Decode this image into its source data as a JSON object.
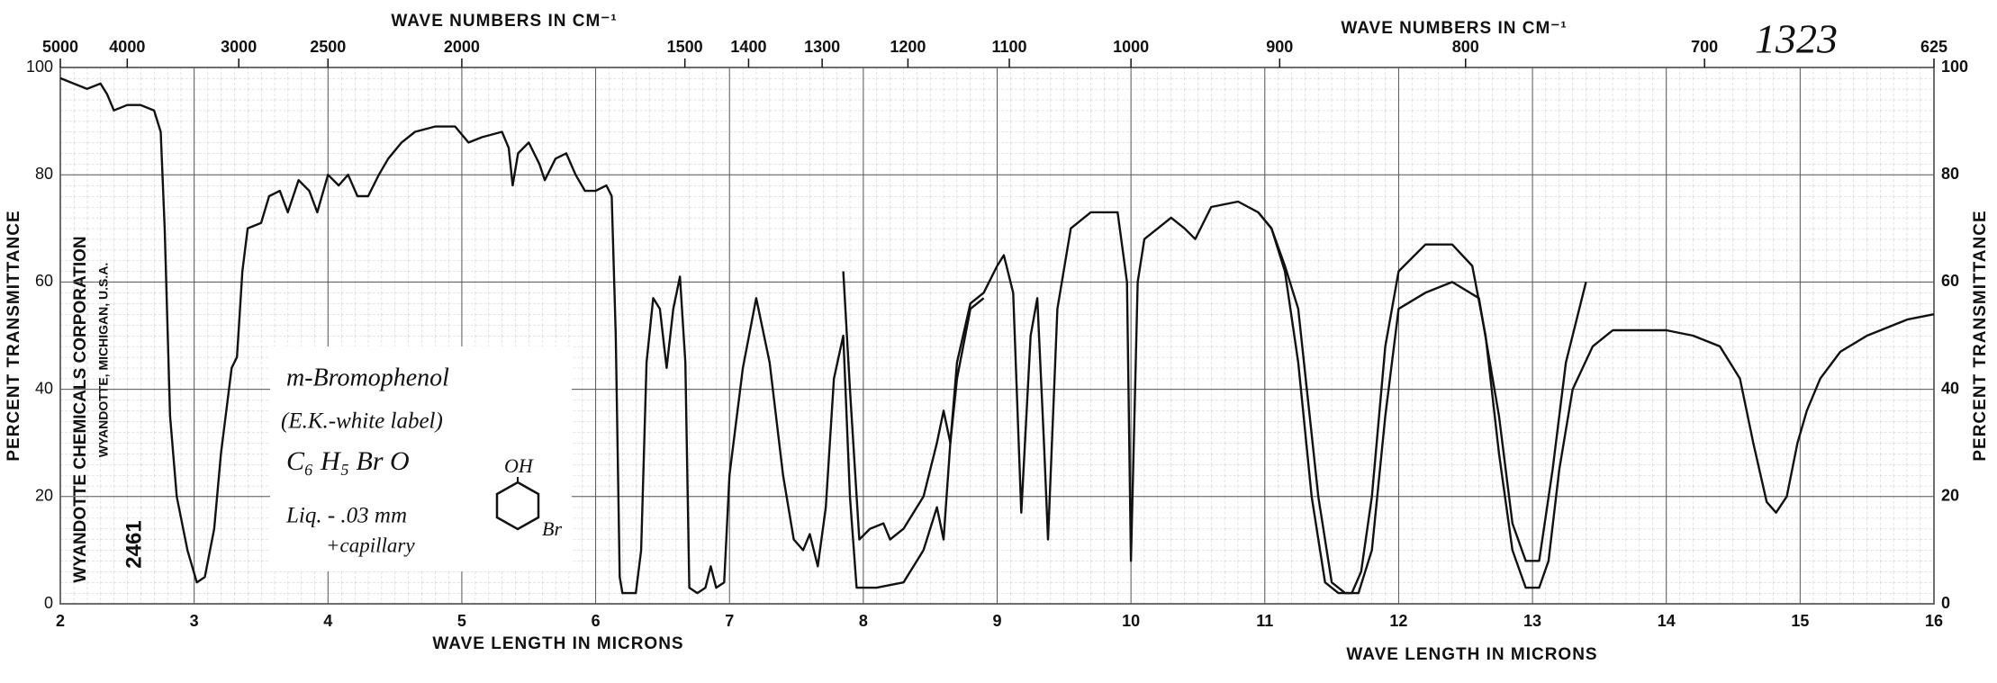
{
  "chart_data": {
    "type": "line",
    "title": "1323",
    "x_label": "WAVE LENGTH IN MICRONS",
    "x2_label": "WAVE NUMBERS IN CM⁻¹",
    "y_label": "PERCENT TRANSMITTANCE",
    "annotations": {
      "compound": "m-Bromophenol",
      "source": "(E.K.-white label)",
      "formula": "C₆ H₅ Br O",
      "sample": "Liq. - .03 mm",
      "cell": "+capillary",
      "group_oh": "OH",
      "group_br": "Br"
    },
    "maker": {
      "company": "WYANDOTTE CHEMICALS CORPORATION",
      "place": "WYANDOTTE, MICHIGAN, U.S.A.",
      "chart_no": "2461"
    },
    "xlim": [
      2,
      16
    ],
    "xticks": [
      2,
      3,
      4,
      5,
      6,
      7,
      8,
      9,
      10,
      11,
      12,
      13,
      14,
      15,
      16
    ],
    "x2ticks": [
      5000,
      4000,
      3000,
      2500,
      2000,
      1500,
      1400,
      1300,
      1200,
      1100,
      1000,
      900,
      800,
      700,
      625
    ],
    "ylim": [
      0,
      100
    ],
    "yticks": [
      0,
      20,
      40,
      60,
      80,
      100
    ],
    "grid": true,
    "series": [
      {
        "color": "#111111",
        "x": [
          2.0,
          2.1,
          2.2,
          2.3,
          2.35,
          2.4,
          2.5,
          2.6,
          2.7,
          2.75,
          2.78,
          2.82,
          2.87,
          2.95,
          3.02,
          3.08,
          3.15,
          3.2,
          3.28,
          3.32,
          3.36,
          3.4,
          3.5,
          3.56,
          3.64,
          3.7,
          3.78,
          3.86,
          3.92,
          4.0,
          4.08,
          4.15,
          4.22,
          4.3,
          4.38,
          4.45,
          4.55,
          4.65,
          4.8,
          4.95,
          5.05,
          5.15,
          5.3,
          5.35,
          5.38,
          5.42,
          5.5,
          5.58,
          5.62,
          5.7,
          5.78,
          5.85,
          5.92,
          6.0,
          6.08,
          6.12,
          6.15,
          6.18,
          6.2,
          6.3,
          6.34,
          6.38,
          6.43,
          6.48,
          6.53,
          6.58,
          6.63,
          6.67,
          6.7,
          6.76,
          6.82,
          6.86,
          6.9,
          6.96,
          7.0,
          7.1,
          7.2,
          7.3,
          7.4,
          7.48,
          7.55,
          7.6,
          7.66,
          7.72,
          7.78,
          7.85,
          7.9,
          7.95,
          8.1,
          8.3,
          8.45,
          8.55,
          8.6,
          8.65,
          8.7,
          8.8,
          8.9,
          9.0,
          9.05,
          9.12,
          9.18,
          9.25,
          9.3,
          9.35,
          9.38,
          9.45,
          9.55,
          9.7,
          9.9,
          9.97,
          10.0,
          10.05,
          10.1,
          10.2,
          10.3,
          10.4,
          10.48,
          10.6,
          10.8,
          10.95,
          11.05,
          11.15,
          11.25,
          11.35,
          11.45,
          11.55,
          11.65,
          11.72,
          11.8,
          11.9,
          12.0,
          12.2,
          12.4,
          12.55,
          12.65,
          12.75,
          12.85,
          12.95,
          13.05,
          13.12,
          13.2,
          13.3,
          13.45,
          13.6,
          13.8,
          14.0,
          14.2,
          14.4,
          14.55,
          14.65,
          14.75,
          14.82,
          14.9,
          14.98,
          15.05,
          15.15,
          15.3,
          15.5,
          15.8,
          16.0
        ],
        "values": [
          98,
          97,
          96,
          97,
          95,
          92,
          93,
          93,
          92,
          88,
          70,
          35,
          20,
          10,
          4,
          5,
          14,
          28,
          44,
          46,
          62,
          70,
          71,
          76,
          77,
          73,
          79,
          77,
          73,
          80,
          78,
          80,
          76,
          76,
          80,
          83,
          86,
          88,
          89,
          89,
          86,
          87,
          88,
          85,
          78,
          84,
          86,
          82,
          79,
          83,
          84,
          80,
          77,
          77,
          78,
          76,
          50,
          5,
          2,
          2,
          10,
          45,
          57,
          55,
          44,
          55,
          61,
          45,
          3,
          2,
          3,
          7,
          3,
          4,
          24,
          44,
          57,
          45,
          24,
          12,
          10,
          13,
          7,
          18,
          42,
          50,
          20,
          3,
          3,
          4,
          10,
          18,
          12,
          30,
          45,
          56,
          58,
          63,
          65,
          58,
          17,
          50,
          57,
          30,
          12,
          55,
          70,
          73,
          73,
          60,
          8,
          60,
          68,
          70,
          72,
          70,
          68,
          74,
          75,
          73,
          70,
          62,
          45,
          20,
          4,
          2,
          2,
          6,
          20,
          48,
          62,
          67,
          67,
          63,
          50,
          28,
          10,
          3,
          3,
          8,
          25,
          40,
          48,
          51,
          51,
          51,
          50,
          48,
          42,
          30,
          19,
          17,
          20,
          30,
          36,
          42,
          47,
          50,
          53,
          54
        ]
      },
      {
        "color": "#111111",
        "x": [
          7.85,
          7.9,
          7.97,
          8.05,
          8.15,
          8.2,
          8.3,
          8.45,
          8.55,
          8.6,
          8.65,
          8.7,
          8.8,
          8.9,
          9.5,
          10.95,
          11.05,
          11.15,
          11.25,
          11.4,
          11.5,
          11.6,
          11.7,
          11.8,
          11.9,
          12.0,
          12.2,
          12.4,
          12.6,
          12.75,
          12.85,
          12.95,
          13.05,
          13.15,
          13.25,
          13.4
        ],
        "values": [
          62,
          40,
          12,
          14,
          15,
          12,
          14,
          20,
          30,
          36,
          30,
          42,
          55,
          57,
          null,
          73,
          70,
          63,
          55,
          20,
          4,
          2,
          2,
          10,
          35,
          55,
          58,
          60,
          57,
          35,
          15,
          8,
          8,
          25,
          45,
          60
        ]
      }
    ]
  }
}
